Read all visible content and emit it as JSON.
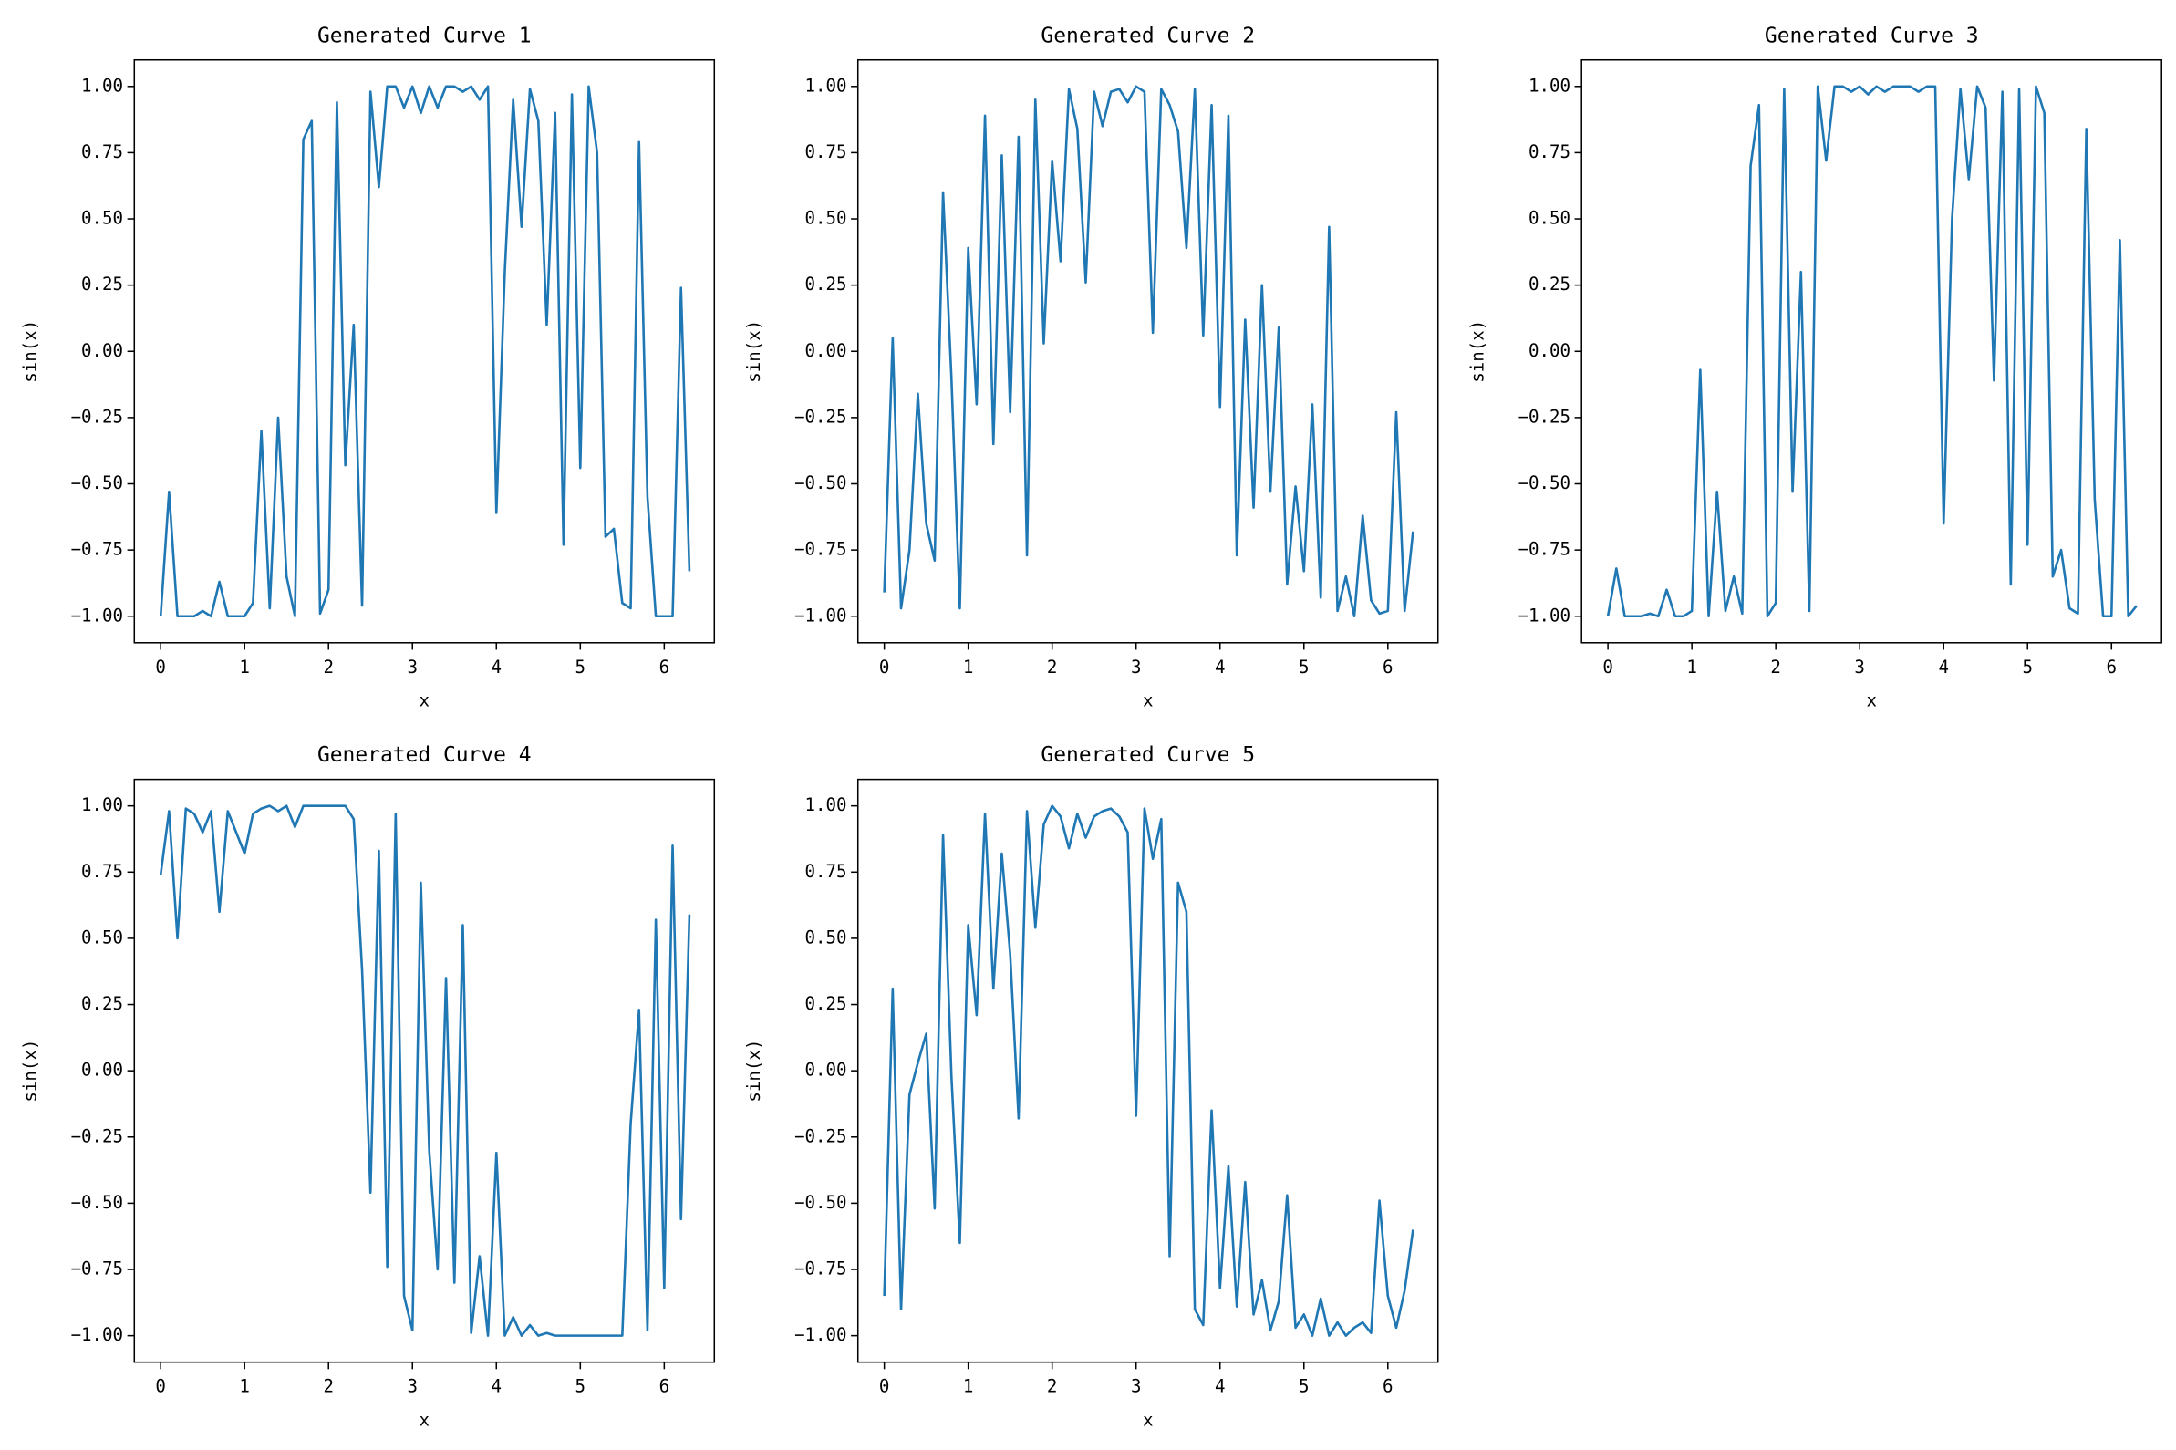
{
  "chart_data": [
    {
      "type": "line",
      "title": "Generated Curve 1",
      "xlabel": "x",
      "ylabel": "sin(x)",
      "color": "#1f77b4",
      "x": [
        0,
        0.1,
        0.2,
        0.3,
        0.4,
        0.5,
        0.6,
        0.7,
        0.8,
        0.9,
        1,
        1.1,
        1.2,
        1.3,
        1.4,
        1.5,
        1.6,
        1.7,
        1.8,
        1.9,
        2,
        2.1,
        2.2,
        2.3,
        2.4,
        2.5,
        2.6,
        2.7,
        2.8,
        2.9,
        3,
        3.1,
        3.2,
        3.3,
        3.4,
        3.5,
        3.6,
        3.7,
        3.8,
        3.9,
        4,
        4.1,
        4.2,
        4.3,
        4.4,
        4.5,
        4.6,
        4.7,
        4.8,
        4.9,
        5,
        5.1,
        5.2,
        5.3,
        5.4,
        5.5,
        5.6,
        5.7,
        5.8,
        5.9,
        6,
        6.1,
        6.2,
        6.3
      ],
      "values": [
        -1,
        -0.53,
        -1,
        -1,
        -1,
        -0.98,
        -1,
        -0.87,
        -1,
        -1,
        -1,
        -0.95,
        -0.3,
        -0.97,
        -0.25,
        -0.85,
        -1,
        0.8,
        0.87,
        -0.99,
        -0.9,
        0.94,
        -0.43,
        0.1,
        -0.96,
        0.98,
        0.62,
        1,
        1,
        0.92,
        1,
        0.9,
        1,
        0.92,
        1,
        1,
        0.98,
        1,
        0.95,
        1,
        -0.61,
        0.3,
        0.95,
        0.47,
        0.99,
        0.87,
        0.1,
        0.9,
        -0.73,
        0.97,
        -0.44,
        1,
        0.75,
        -0.7,
        -0.67,
        -0.95,
        -0.97,
        0.79,
        -0.55,
        -1,
        -1,
        -1,
        0.24,
        -0.83
      ],
      "xlim": [
        -0.314,
        6.597
      ],
      "ylim": [
        -1.1,
        1.1
      ],
      "xticks": [
        0,
        1,
        2,
        3,
        4,
        5,
        6
      ],
      "yticks": [
        {
          "value": -1,
          "label": "−1.00"
        },
        {
          "value": -0.75,
          "label": "−0.75"
        },
        {
          "value": -0.5,
          "label": "−0.50"
        },
        {
          "value": -0.25,
          "label": "−0.25"
        },
        {
          "value": 0,
          "label": "0.00"
        },
        {
          "value": 0.25,
          "label": "0.25"
        },
        {
          "value": 0.5,
          "label": "0.50"
        },
        {
          "value": 0.75,
          "label": "0.75"
        },
        {
          "value": 1,
          "label": "1.00"
        }
      ]
    },
    {
      "type": "line",
      "title": "Generated Curve 2",
      "xlabel": "x",
      "ylabel": "sin(x)",
      "color": "#1f77b4",
      "x": [
        0,
        0.1,
        0.2,
        0.3,
        0.4,
        0.5,
        0.6,
        0.7,
        0.8,
        0.9,
        1,
        1.1,
        1.2,
        1.3,
        1.4,
        1.5,
        1.6,
        1.7,
        1.8,
        1.9,
        2,
        2.1,
        2.2,
        2.3,
        2.4,
        2.5,
        2.6,
        2.7,
        2.8,
        2.9,
        3,
        3.1,
        3.2,
        3.3,
        3.4,
        3.5,
        3.6,
        3.7,
        3.8,
        3.9,
        4,
        4.1,
        4.2,
        4.3,
        4.4,
        4.5,
        4.6,
        4.7,
        4.8,
        4.9,
        5,
        5.1,
        5.2,
        5.3,
        5.4,
        5.5,
        5.6,
        5.7,
        5.8,
        5.9,
        6,
        6.1,
        6.2,
        6.3
      ],
      "values": [
        -0.91,
        0.05,
        -0.97,
        -0.75,
        -0.16,
        -0.65,
        -0.79,
        0.6,
        -0.1,
        -0.97,
        0.39,
        -0.2,
        0.89,
        -0.35,
        0.74,
        -0.23,
        0.81,
        -0.77,
        0.95,
        0.03,
        0.72,
        0.34,
        0.99,
        0.84,
        0.26,
        0.98,
        0.85,
        0.98,
        0.99,
        0.94,
        1,
        0.98,
        0.07,
        0.99,
        0.93,
        0.83,
        0.39,
        0.99,
        0.06,
        0.93,
        -0.21,
        0.89,
        -0.77,
        0.12,
        -0.59,
        0.25,
        -0.53,
        0.09,
        -0.88,
        -0.51,
        -0.83,
        -0.2,
        -0.93,
        0.47,
        -0.98,
        -0.85,
        -1,
        -0.62,
        -0.94,
        -0.99,
        -0.98,
        -0.23,
        -0.98,
        -0.68
      ],
      "xlim": [
        -0.314,
        6.597
      ],
      "ylim": [
        -1.1,
        1.1
      ],
      "xticks": [
        0,
        1,
        2,
        3,
        4,
        5,
        6
      ],
      "yticks": [
        {
          "value": -1,
          "label": "−1.00"
        },
        {
          "value": -0.75,
          "label": "−0.75"
        },
        {
          "value": -0.5,
          "label": "−0.50"
        },
        {
          "value": -0.25,
          "label": "−0.25"
        },
        {
          "value": 0,
          "label": "0.00"
        },
        {
          "value": 0.25,
          "label": "0.25"
        },
        {
          "value": 0.5,
          "label": "0.50"
        },
        {
          "value": 0.75,
          "label": "0.75"
        },
        {
          "value": 1,
          "label": "1.00"
        }
      ]
    },
    {
      "type": "line",
      "title": "Generated Curve 3",
      "xlabel": "x",
      "ylabel": "sin(x)",
      "color": "#1f77b4",
      "x": [
        0,
        0.1,
        0.2,
        0.3,
        0.4,
        0.5,
        0.6,
        0.7,
        0.8,
        0.9,
        1,
        1.1,
        1.2,
        1.3,
        1.4,
        1.5,
        1.6,
        1.7,
        1.8,
        1.9,
        2,
        2.1,
        2.2,
        2.3,
        2.4,
        2.5,
        2.6,
        2.7,
        2.8,
        2.9,
        3,
        3.1,
        3.2,
        3.3,
        3.4,
        3.5,
        3.6,
        3.7,
        3.8,
        3.9,
        4,
        4.1,
        4.2,
        4.3,
        4.4,
        4.5,
        4.6,
        4.7,
        4.8,
        4.9,
        5,
        5.1,
        5.2,
        5.3,
        5.4,
        5.5,
        5.6,
        5.7,
        5.8,
        5.9,
        6,
        6.1,
        6.2,
        6.3
      ],
      "values": [
        -1,
        -0.82,
        -1,
        -1,
        -1,
        -0.99,
        -1,
        -0.9,
        -1,
        -1,
        -0.98,
        -0.07,
        -1,
        -0.53,
        -0.98,
        -0.85,
        -0.99,
        0.7,
        0.93,
        -1,
        -0.95,
        0.99,
        -0.53,
        0.3,
        -0.98,
        1,
        0.72,
        1,
        1,
        0.98,
        1,
        0.97,
        1,
        0.98,
        1,
        1,
        1,
        0.98,
        1,
        1,
        -0.65,
        0.5,
        0.99,
        0.65,
        1,
        0.92,
        -0.11,
        0.98,
        -0.88,
        0.99,
        -0.73,
        1,
        0.9,
        -0.85,
        -0.75,
        -0.97,
        -0.99,
        0.84,
        -0.56,
        -1,
        -1,
        0.42,
        -1,
        -0.96
      ],
      "xlim": [
        -0.314,
        6.597
      ],
      "ylim": [
        -1.1,
        1.1
      ],
      "xticks": [
        0,
        1,
        2,
        3,
        4,
        5,
        6
      ],
      "yticks": [
        {
          "value": -1,
          "label": "−1.00"
        },
        {
          "value": -0.75,
          "label": "−0.75"
        },
        {
          "value": -0.5,
          "label": "−0.50"
        },
        {
          "value": -0.25,
          "label": "−0.25"
        },
        {
          "value": 0,
          "label": "0.00"
        },
        {
          "value": 0.25,
          "label": "0.25"
        },
        {
          "value": 0.5,
          "label": "0.50"
        },
        {
          "value": 0.75,
          "label": "0.75"
        },
        {
          "value": 1,
          "label": "1.00"
        }
      ]
    },
    {
      "type": "line",
      "title": "Generated Curve 4",
      "xlabel": "x",
      "ylabel": "sin(x)",
      "color": "#1f77b4",
      "x": [
        0,
        0.1,
        0.2,
        0.3,
        0.4,
        0.5,
        0.6,
        0.7,
        0.8,
        0.9,
        1,
        1.1,
        1.2,
        1.3,
        1.4,
        1.5,
        1.6,
        1.7,
        1.8,
        1.9,
        2,
        2.1,
        2.2,
        2.3,
        2.4,
        2.5,
        2.6,
        2.7,
        2.8,
        2.9,
        3,
        3.1,
        3.2,
        3.3,
        3.4,
        3.5,
        3.6,
        3.7,
        3.8,
        3.9,
        4,
        4.1,
        4.2,
        4.3,
        4.4,
        4.5,
        4.6,
        4.7,
        4.8,
        4.9,
        5,
        5.1,
        5.2,
        5.3,
        5.4,
        5.5,
        5.6,
        5.7,
        5.8,
        5.9,
        6,
        6.1,
        6.2,
        6.3
      ],
      "values": [
        0.74,
        0.98,
        0.5,
        0.99,
        0.97,
        0.9,
        0.98,
        0.6,
        0.98,
        0.9,
        0.82,
        0.97,
        0.99,
        1,
        0.98,
        1,
        0.92,
        1,
        1,
        1,
        1,
        1,
        1,
        0.95,
        0.38,
        -0.46,
        0.83,
        -0.74,
        0.97,
        -0.85,
        -0.98,
        0.71,
        -0.3,
        -0.75,
        0.35,
        -0.8,
        0.55,
        -0.99,
        -0.7,
        -1,
        -0.31,
        -1,
        -0.93,
        -1,
        -0.96,
        -1,
        -0.99,
        -1,
        -1,
        -1,
        -1,
        -1,
        -1,
        -1,
        -1,
        -1,
        -0.2,
        0.23,
        -0.98,
        0.57,
        -0.82,
        0.85,
        -0.56,
        0.59
      ],
      "xlim": [
        -0.314,
        6.597
      ],
      "ylim": [
        -1.1,
        1.1
      ],
      "xticks": [
        0,
        1,
        2,
        3,
        4,
        5,
        6
      ],
      "yticks": [
        {
          "value": -1,
          "label": "−1.00"
        },
        {
          "value": -0.75,
          "label": "−0.75"
        },
        {
          "value": -0.5,
          "label": "−0.50"
        },
        {
          "value": -0.25,
          "label": "−0.25"
        },
        {
          "value": 0,
          "label": "0.00"
        },
        {
          "value": 0.25,
          "label": "0.25"
        },
        {
          "value": 0.5,
          "label": "0.50"
        },
        {
          "value": 0.75,
          "label": "0.75"
        },
        {
          "value": 1,
          "label": "1.00"
        }
      ]
    },
    {
      "type": "line",
      "title": "Generated Curve 5",
      "xlabel": "x",
      "ylabel": "sin(x)",
      "color": "#1f77b4",
      "x": [
        0,
        0.1,
        0.2,
        0.3,
        0.4,
        0.5,
        0.6,
        0.7,
        0.8,
        0.9,
        1,
        1.1,
        1.2,
        1.3,
        1.4,
        1.5,
        1.6,
        1.7,
        1.8,
        1.9,
        2,
        2.1,
        2.2,
        2.3,
        2.4,
        2.5,
        2.6,
        2.7,
        2.8,
        2.9,
        3,
        3.1,
        3.2,
        3.3,
        3.4,
        3.5,
        3.6,
        3.7,
        3.8,
        3.9,
        4,
        4.1,
        4.2,
        4.3,
        4.4,
        4.5,
        4.6,
        4.7,
        4.8,
        4.9,
        5,
        5.1,
        5.2,
        5.3,
        5.4,
        5.5,
        5.6,
        5.7,
        5.8,
        5.9,
        6,
        6.1,
        6.2,
        6.3
      ],
      "values": [
        -0.85,
        0.31,
        -0.9,
        -0.09,
        0.03,
        0.14,
        -0.52,
        0.89,
        -0.02,
        -0.65,
        0.55,
        0.21,
        0.97,
        0.31,
        0.82,
        0.44,
        -0.18,
        0.98,
        0.54,
        0.93,
        1,
        0.96,
        0.84,
        0.97,
        0.88,
        0.96,
        0.98,
        0.99,
        0.96,
        0.9,
        -0.17,
        0.99,
        0.8,
        0.95,
        -0.7,
        0.71,
        0.6,
        -0.9,
        -0.96,
        -0.15,
        -0.82,
        -0.36,
        -0.89,
        -0.42,
        -0.92,
        -0.79,
        -0.98,
        -0.87,
        -0.47,
        -0.97,
        -0.92,
        -1,
        -0.86,
        -1,
        -0.95,
        -1,
        -0.97,
        -0.95,
        -0.99,
        -0.49,
        -0.85,
        -0.97,
        -0.83,
        -0.6
      ],
      "xlim": [
        -0.314,
        6.597
      ],
      "ylim": [
        -1.1,
        1.1
      ],
      "xticks": [
        0,
        1,
        2,
        3,
        4,
        5,
        6
      ],
      "yticks": [
        {
          "value": -1,
          "label": "−1.00"
        },
        {
          "value": -0.75,
          "label": "−0.75"
        },
        {
          "value": -0.5,
          "label": "−0.50"
        },
        {
          "value": -0.25,
          "label": "−0.25"
        },
        {
          "value": 0,
          "label": "0.00"
        },
        {
          "value": 0.25,
          "label": "0.25"
        },
        {
          "value": 0.5,
          "label": "0.50"
        },
        {
          "value": 0.75,
          "label": "0.75"
        },
        {
          "value": 1,
          "label": "1.00"
        }
      ]
    }
  ]
}
